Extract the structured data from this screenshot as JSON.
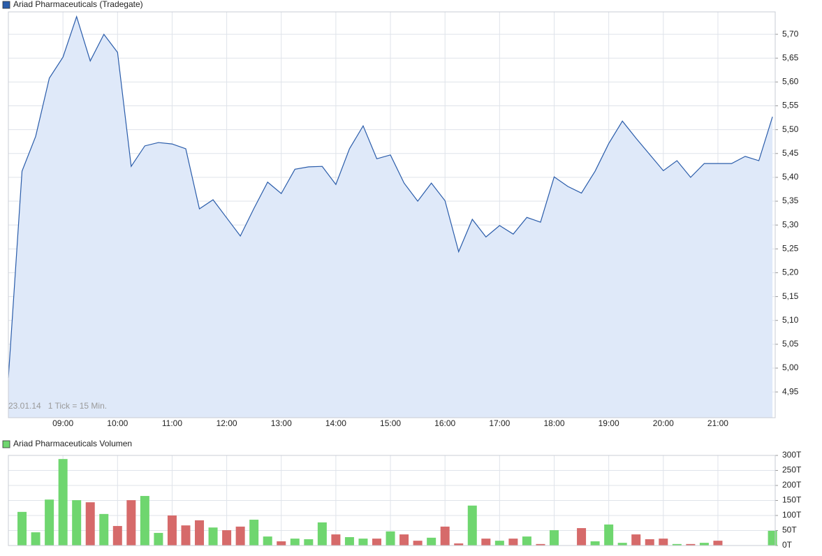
{
  "chart_data": [
    {
      "type": "line",
      "series": [
        {
          "name": "Ariad Pharmaceuticals (Tradegate)",
          "color": "#2a5caa",
          "fill": "#dfe9f9",
          "values": [
            4.98,
            5.413,
            5.486,
            5.608,
            5.652,
            5.737,
            5.644,
            5.7,
            5.662,
            5.423,
            5.466,
            5.473,
            5.47,
            5.46,
            5.334,
            5.353,
            5.315,
            5.277,
            5.335,
            5.39,
            5.366,
            5.417,
            5.422,
            5.423,
            5.385,
            5.46,
            5.508,
            5.439,
            5.447,
            5.388,
            5.35,
            5.388,
            5.351,
            5.244,
            5.312,
            5.275,
            5.299,
            5.281,
            5.316,
            5.306,
            5.401,
            5.381,
            5.367,
            5.413,
            5.471,
            5.518,
            5.482,
            5.448,
            5.414,
            5.435,
            5.4,
            5.429,
            5.429,
            5.429,
            5.444,
            5.435,
            5.527
          ]
        }
      ],
      "x": [
        8,
        8.25,
        8.5,
        8.75,
        9,
        9.25,
        9.5,
        9.75,
        10,
        10.25,
        10.5,
        10.75,
        11,
        11.25,
        11.5,
        11.75,
        12,
        12.25,
        12.5,
        12.75,
        13,
        13.25,
        13.5,
        13.75,
        14,
        14.25,
        14.5,
        14.75,
        15,
        15.25,
        15.5,
        15.75,
        16,
        16.25,
        16.5,
        16.75,
        17,
        17.25,
        17.5,
        17.75,
        18,
        18.25,
        18.5,
        18.75,
        19,
        19.25,
        19.5,
        19.75,
        20,
        20.25,
        20.5,
        20.75,
        21,
        21.25,
        21.5,
        21.75,
        22
      ],
      "xlim": [
        8,
        22.05
      ],
      "xticks": [
        {
          "value": 9,
          "label": "09:00"
        },
        {
          "value": 10,
          "label": "10:00"
        },
        {
          "value": 11,
          "label": "11:00"
        },
        {
          "value": 12,
          "label": "12:00"
        },
        {
          "value": 13,
          "label": "13:00"
        },
        {
          "value": 14,
          "label": "14:00"
        },
        {
          "value": 15,
          "label": "15:00"
        },
        {
          "value": 16,
          "label": "16:00"
        },
        {
          "value": 17,
          "label": "17:00"
        },
        {
          "value": 18,
          "label": "18:00"
        },
        {
          "value": 19,
          "label": "19:00"
        },
        {
          "value": 20,
          "label": "20:00"
        },
        {
          "value": 21,
          "label": "21:00"
        }
      ],
      "ylim": [
        4.896,
        5.747
      ],
      "yticks": [
        {
          "value": 4.95,
          "label": "4,95"
        },
        {
          "value": 5.0,
          "label": "5,00"
        },
        {
          "value": 5.05,
          "label": "5,05"
        },
        {
          "value": 5.1,
          "label": "5,10"
        },
        {
          "value": 5.15,
          "label": "5,15"
        },
        {
          "value": 5.2,
          "label": "5,20"
        },
        {
          "value": 5.25,
          "label": "5,25"
        },
        {
          "value": 5.3,
          "label": "5,30"
        },
        {
          "value": 5.35,
          "label": "5,35"
        },
        {
          "value": 5.4,
          "label": "5,40"
        },
        {
          "value": 5.45,
          "label": "5,45"
        },
        {
          "value": 5.5,
          "label": "5,50"
        },
        {
          "value": 5.55,
          "label": "5,55"
        },
        {
          "value": 5.6,
          "label": "5,60"
        },
        {
          "value": 5.65,
          "label": "5,65"
        },
        {
          "value": 5.7,
          "label": "5,70"
        }
      ],
      "annotation": "23.01.14   1 Tick = 15 Min.",
      "grid": true
    },
    {
      "type": "bar",
      "series": [
        {
          "name": "Ariad Pharmaceuticals Volumen",
          "color": "#6fd66f",
          "colors": [
            "#6fd66f",
            "#6fd66f",
            "#6fd66f",
            "#6fd66f",
            "#6fd66f",
            "#d66a6a",
            "#6fd66f",
            "#d66a6a",
            "#d66a6a",
            "#6fd66f",
            "#6fd66f",
            "#d66a6a",
            "#d66a6a",
            "#d66a6a",
            "#6fd66f",
            "#d66a6a",
            "#d66a6a",
            "#6fd66f",
            "#6fd66f",
            "#d66a6a",
            "#6fd66f",
            "#6fd66f",
            "#6fd66f",
            "#d66a6a",
            "#6fd66f",
            "#6fd66f",
            "#d66a6a",
            "#6fd66f",
            "#d66a6a",
            "#d66a6a",
            "#6fd66f",
            "#d66a6a",
            "#d66a6a",
            "#6fd66f",
            "#d66a6a",
            "#6fd66f",
            "#d66a6a",
            "#6fd66f",
            "#d66a6a",
            "#6fd66f",
            "#6fd66f",
            "#d66a6a",
            "#6fd66f",
            "#6fd66f",
            "#6fd66f",
            "#d66a6a",
            "#d66a6a",
            "#d66a6a",
            "#6fd66f",
            "#d66a6a",
            "#6fd66f",
            "#d66a6a",
            "#6fd66f",
            "#6fd66f",
            "#6fd66f",
            "#6fd66f"
          ],
          "values": [
            112,
            44,
            153,
            288,
            151,
            144,
            105,
            65,
            151,
            165,
            42,
            100,
            67,
            84,
            60,
            51,
            63,
            86,
            30,
            14,
            23,
            21,
            77,
            37,
            28,
            23,
            23,
            47,
            37,
            16,
            26,
            63,
            7,
            133,
            23,
            16,
            23,
            30,
            5,
            51,
            null,
            58,
            14,
            70,
            9,
            37,
            21,
            23,
            5,
            5,
            9,
            16,
            null,
            null,
            null,
            49
          ]
        }
      ],
      "x": [
        8.25,
        8.5,
        8.75,
        9,
        9.25,
        9.5,
        9.75,
        10,
        10.25,
        10.5,
        10.75,
        11,
        11.25,
        11.5,
        11.75,
        12,
        12.25,
        12.5,
        12.75,
        13,
        13.25,
        13.5,
        13.75,
        14,
        14.25,
        14.5,
        14.75,
        15,
        15.25,
        15.5,
        15.75,
        16,
        16.25,
        16.5,
        16.75,
        17,
        17.25,
        17.5,
        17.75,
        18,
        18.25,
        18.5,
        18.75,
        19,
        19.25,
        19.5,
        19.75,
        20,
        20.25,
        20.5,
        20.75,
        21,
        21.25,
        21.5,
        21.75,
        22
      ],
      "xlim": [
        8,
        22.05
      ],
      "ylim": [
        0,
        300
      ],
      "yticks": [
        {
          "value": 0,
          "label": "0T"
        },
        {
          "value": 50,
          "label": "50T"
        },
        {
          "value": 100,
          "label": "100T"
        },
        {
          "value": 150,
          "label": "150T"
        },
        {
          "value": 200,
          "label": "200T"
        },
        {
          "value": 250,
          "label": "250T"
        },
        {
          "value": 300,
          "label": "300T"
        }
      ],
      "grid": true
    }
  ]
}
